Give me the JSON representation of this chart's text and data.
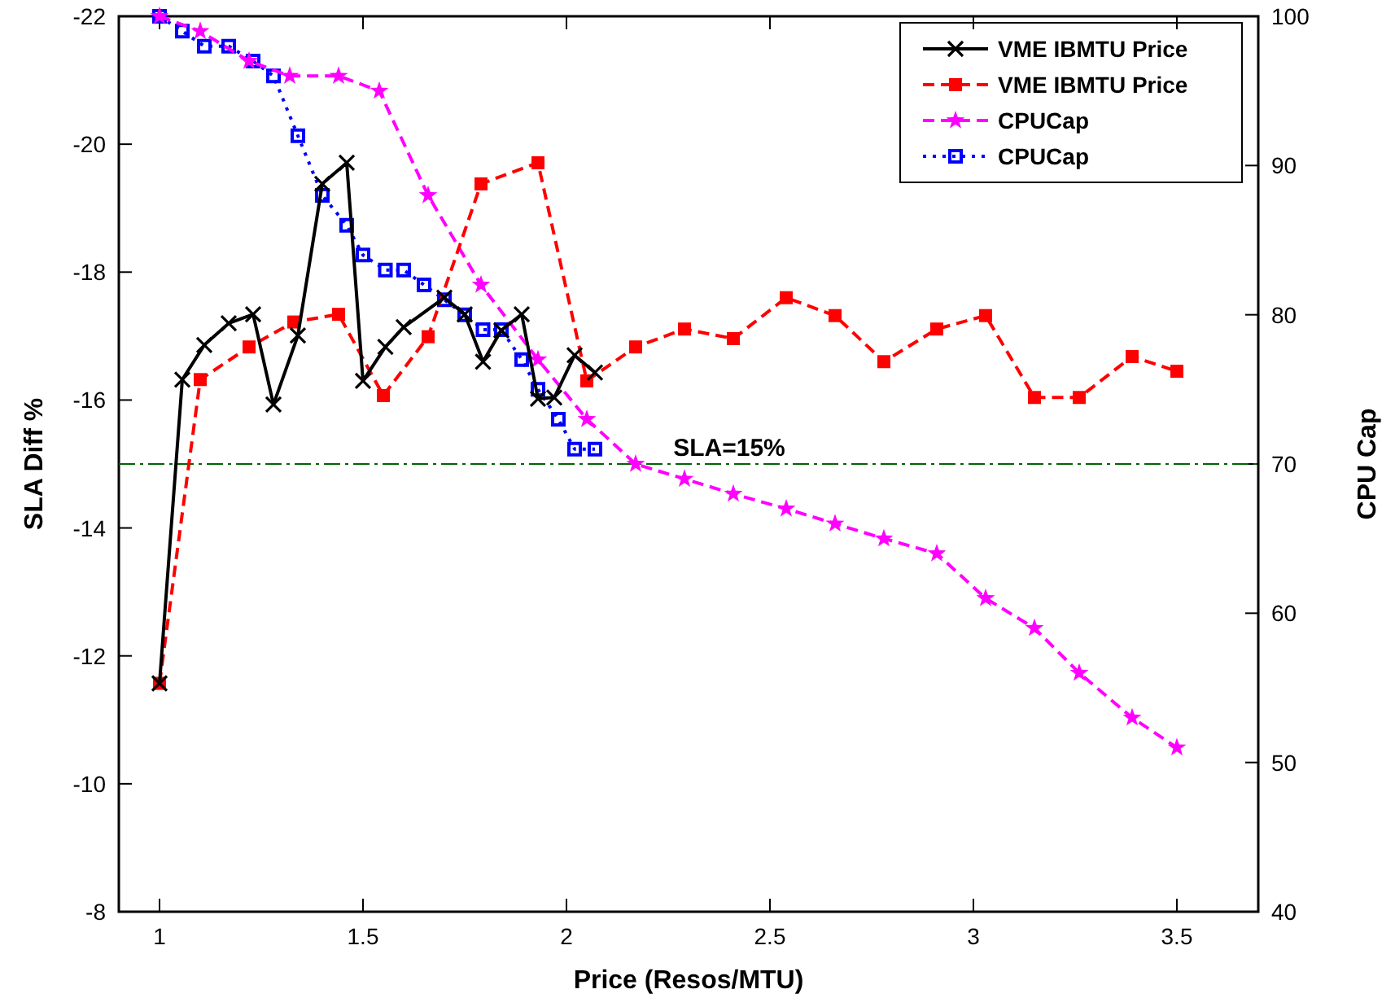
{
  "chart_data": {
    "type": "line",
    "xlabel": "Price (Resos/MTU)",
    "ylabel": "SLA Diff %",
    "y2label": "CPU Cap",
    "xlim": [
      0.9,
      3.7
    ],
    "xticks": [
      1,
      1.5,
      2,
      2.5,
      3,
      3.5
    ],
    "ylim": [
      -8,
      -22
    ],
    "yticks": [
      -8,
      -10,
      -12,
      -14,
      -16,
      -18,
      -20,
      -22
    ],
    "y2lim": [
      40,
      100
    ],
    "y2ticks": [
      40,
      50,
      60,
      70,
      80,
      90,
      100
    ],
    "grid": false,
    "legend": "top right",
    "ref_lines": [
      {
        "axis": "y",
        "value": -15,
        "color": "#006400",
        "line_style": "dashed"
      }
    ],
    "annotations": [
      "SLA=15%"
    ],
    "series": [
      {
        "name": "VME IBMTU Price",
        "color": "#000000",
        "marker": "cross",
        "line_style": "solid",
        "x": [
          1.0,
          1.056,
          1.11,
          1.17,
          1.23,
          1.28,
          1.34,
          1.4,
          1.46,
          1.5,
          1.555,
          1.6,
          1.7,
          1.75,
          1.795,
          1.84,
          1.89,
          1.93,
          1.97,
          2.02,
          2.07
        ],
        "values": [
          -11.57,
          -16.32,
          -16.86,
          -17.2,
          -17.34,
          -15.93,
          -17.01,
          -19.38,
          -19.71,
          -16.3,
          -16.83,
          -17.14,
          -17.6,
          -17.34,
          -16.6,
          -17.09,
          -17.34,
          -16.02,
          -16.04,
          -16.7,
          -16.43
        ]
      },
      {
        "name": "VME IBMTU Price",
        "color": "#ff0000",
        "marker": "square",
        "line_style": "dashed",
        "x": [
          1.0,
          1.1,
          1.22,
          1.33,
          1.44,
          1.55,
          1.66,
          1.79,
          1.93,
          2.05,
          2.17,
          2.29,
          2.41,
          2.54,
          2.66,
          2.78,
          2.91,
          3.03,
          3.15,
          3.26,
          3.39,
          3.5
        ],
        "values": [
          -11.57,
          -16.32,
          -16.83,
          -17.22,
          -17.34,
          -16.07,
          -16.99,
          -19.38,
          -19.71,
          -16.3,
          -16.83,
          -17.11,
          -16.96,
          -17.6,
          -17.32,
          -16.6,
          -17.11,
          -17.32,
          -16.04,
          -16.04,
          -16.68,
          -16.45
        ]
      },
      {
        "name": "CPUCap",
        "color": "#ff00ff",
        "marker": "star",
        "line_style": "dashed",
        "axis": "y2",
        "x": [
          1.0,
          1.1,
          1.22,
          1.32,
          1.44,
          1.54,
          1.66,
          1.79,
          1.93,
          2.05,
          2.17,
          2.29,
          2.41,
          2.54,
          2.66,
          2.78,
          2.91,
          3.03,
          3.15,
          3.26,
          3.39,
          3.5
        ],
        "values": [
          100,
          99,
          97,
          96,
          96,
          95,
          88,
          82,
          77,
          73,
          70,
          69,
          68,
          67,
          66,
          65,
          64,
          61,
          59,
          56,
          53,
          51
        ]
      },
      {
        "name": "CPUCap",
        "color": "#0000ff",
        "marker": "square",
        "line_style": "dotted",
        "axis": "y2",
        "x": [
          1.0,
          1.056,
          1.11,
          1.17,
          1.23,
          1.28,
          1.34,
          1.4,
          1.46,
          1.5,
          1.555,
          1.6,
          1.65,
          1.7,
          1.75,
          1.795,
          1.84,
          1.89,
          1.93,
          1.98,
          2.02,
          2.07
        ],
        "values": [
          100,
          99,
          98,
          98,
          97,
          96,
          92,
          88,
          86,
          84,
          83,
          83,
          82,
          81,
          80,
          79,
          79,
          77,
          75,
          73,
          71,
          71
        ]
      }
    ]
  }
}
